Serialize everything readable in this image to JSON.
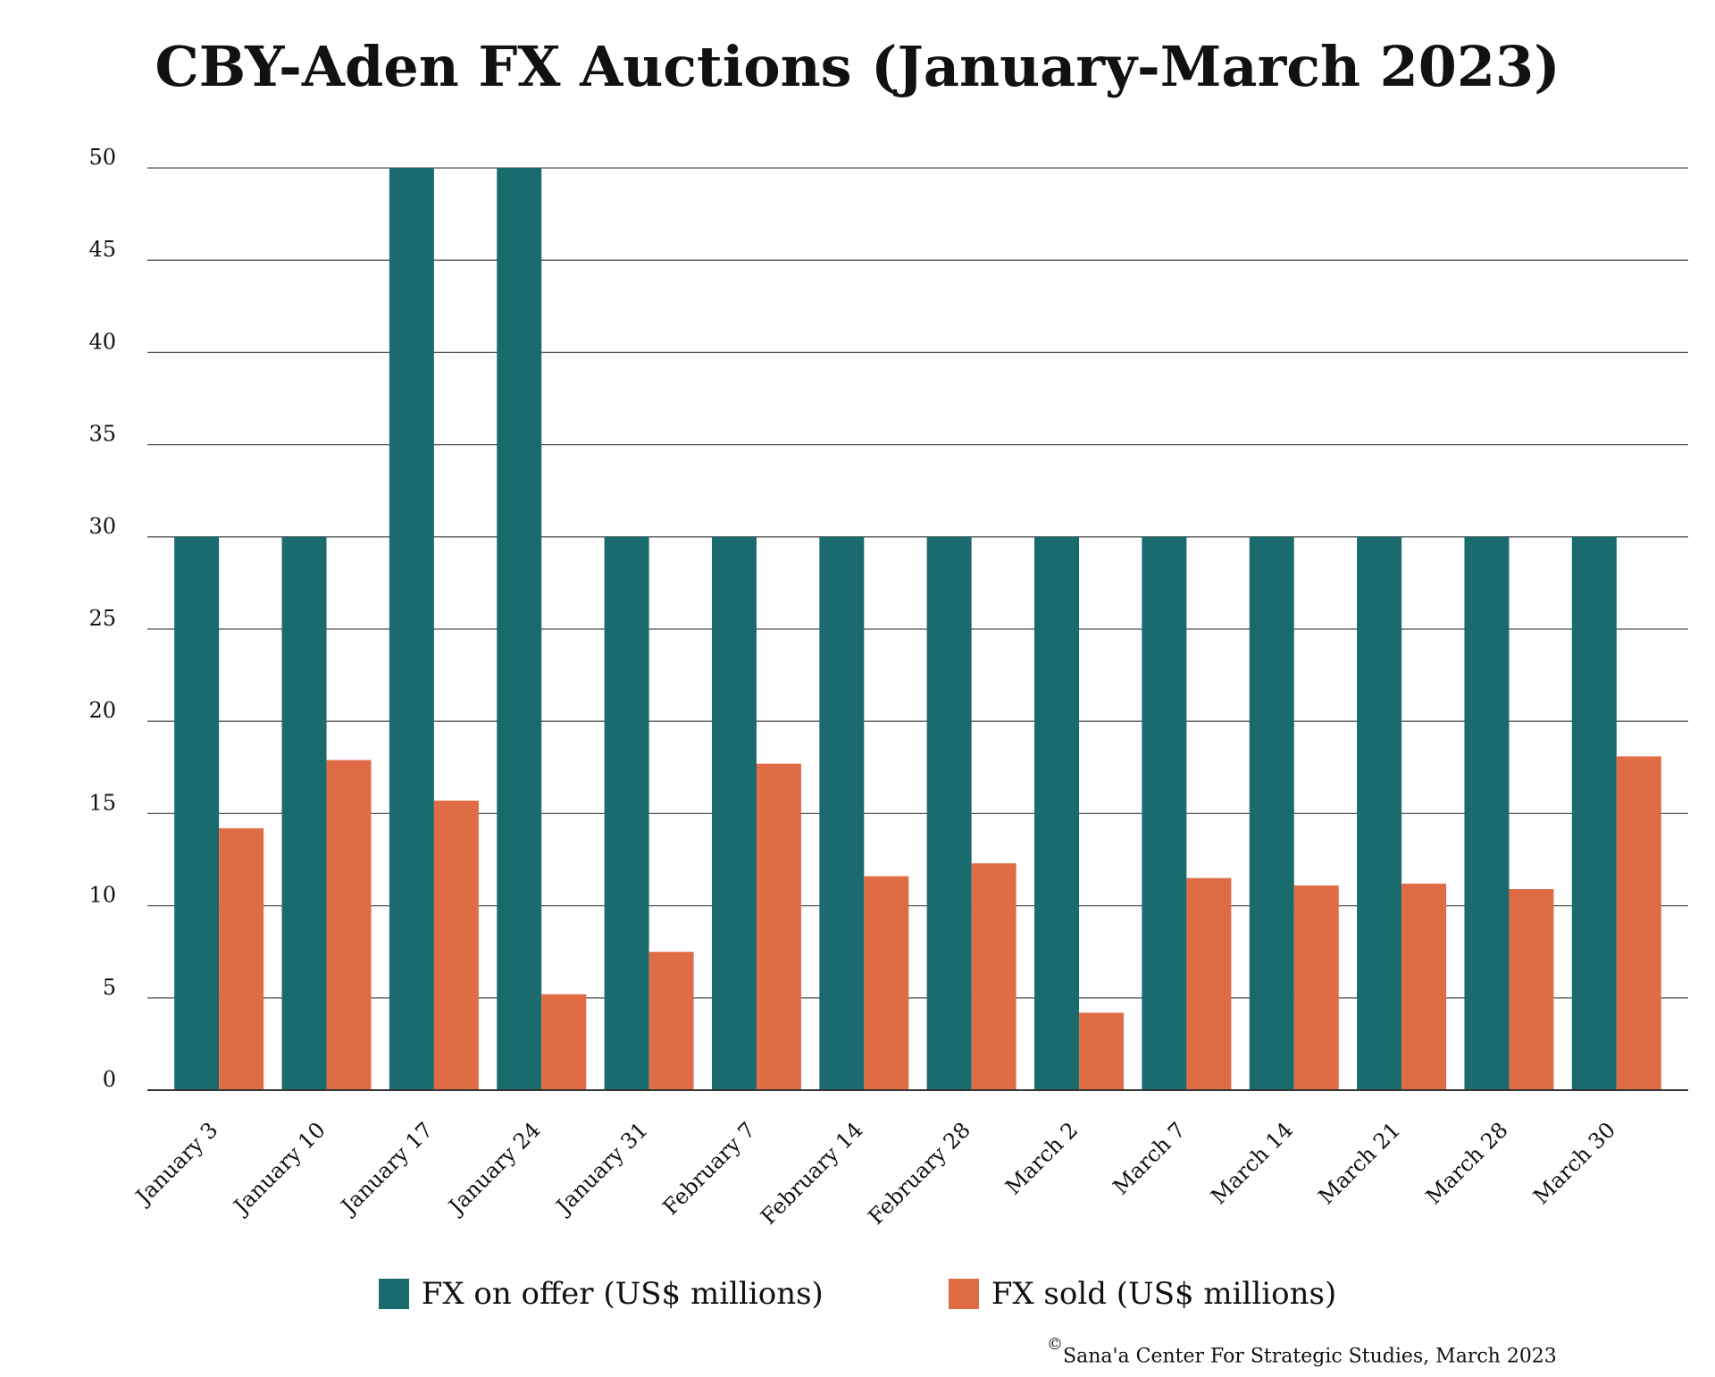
{
  "chart_data": {
    "type": "bar",
    "title": "CBY-Aden FX Auctions (January-March 2023)",
    "categories": [
      "January 3",
      "January 10",
      "January 17",
      "January 24",
      "January 31",
      "February 7",
      "February 14",
      "February 28",
      "March 2",
      "March 7",
      "March 14",
      "March 21",
      "March 28",
      "March 30"
    ],
    "series": [
      {
        "name": "FX on offer (US$ millions)",
        "color": "#196b6d",
        "values": [
          30,
          30,
          50,
          50,
          30,
          30,
          30,
          30,
          30,
          30,
          30,
          30,
          30,
          30
        ]
      },
      {
        "name": "FX sold (US$ millions)",
        "color": "#e06c45",
        "values": [
          14.2,
          17.9,
          15.7,
          5.2,
          7.5,
          17.7,
          11.6,
          12.3,
          4.2,
          11.5,
          11.1,
          11.2,
          10.9,
          18.1
        ]
      }
    ],
    "ylim": [
      0,
      50
    ],
    "yticks": [
      "0",
      "5",
      "10",
      "15",
      "20",
      "25",
      "30",
      "35",
      "40",
      "45",
      "50"
    ],
    "grid": true,
    "legend_position": "bottom"
  },
  "source_note": "Sana'a Center For Strategic Studies, March 2023",
  "source_symbol": "©"
}
